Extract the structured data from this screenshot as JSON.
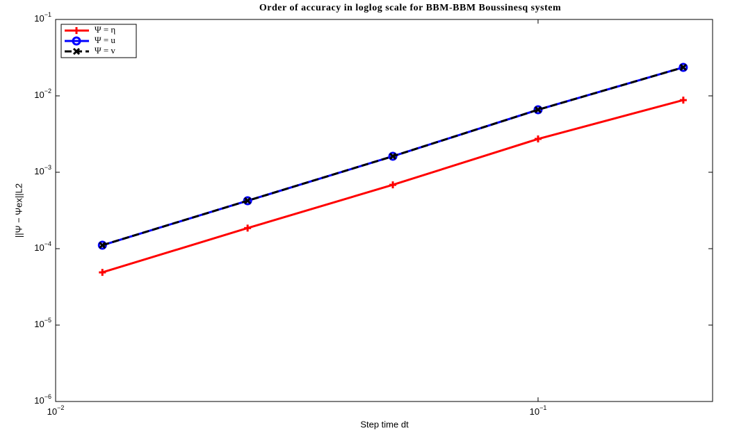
{
  "chart_data": {
    "type": "line",
    "title": "Order of accuracy in loglog scale for BBM-BBM Boussinesq system",
    "x_label": "Step time dt",
    "y_label": "||Ψ − Ψex||L2",
    "xscale": "log",
    "yscale": "log",
    "x": [
      0.0125,
      0.025,
      0.05,
      0.1,
      0.2
    ],
    "series": [
      {
        "name": "Ψ = η",
        "color": "#ff0000",
        "marker": "plus",
        "dash": false,
        "values": [
          4.9e-05,
          0.000186,
          0.000685,
          0.00273,
          0.0088
        ]
      },
      {
        "name": "Ψ = u",
        "color": "#0000ff",
        "marker": "circle",
        "dash": false,
        "values": [
          0.000111,
          0.000424,
          0.00162,
          0.00658,
          0.0236
        ]
      },
      {
        "name": "Ψ = v",
        "color": "#000000",
        "marker": "x",
        "dash": true,
        "values": [
          0.000111,
          0.000424,
          0.00162,
          0.00658,
          0.0236
        ]
      }
    ],
    "xlim": [
      0.01,
      0.23
    ],
    "xticks": [
      {
        "value": 0.01,
        "label": "10^-2"
      },
      {
        "value": 0.1,
        "label": "10^-1"
      }
    ],
    "ylim": [
      1e-06,
      0.1
    ],
    "yticks": [
      {
        "value": 1e-06,
        "label": "10^-6"
      },
      {
        "value": 1e-05,
        "label": "10^-5"
      },
      {
        "value": 0.0001,
        "label": "10^-4"
      },
      {
        "value": 0.001,
        "label": "10^-3"
      },
      {
        "value": 0.01,
        "label": "10^-2"
      },
      {
        "value": 0.1,
        "label": "10^-1"
      }
    ],
    "legend": "top-left"
  }
}
